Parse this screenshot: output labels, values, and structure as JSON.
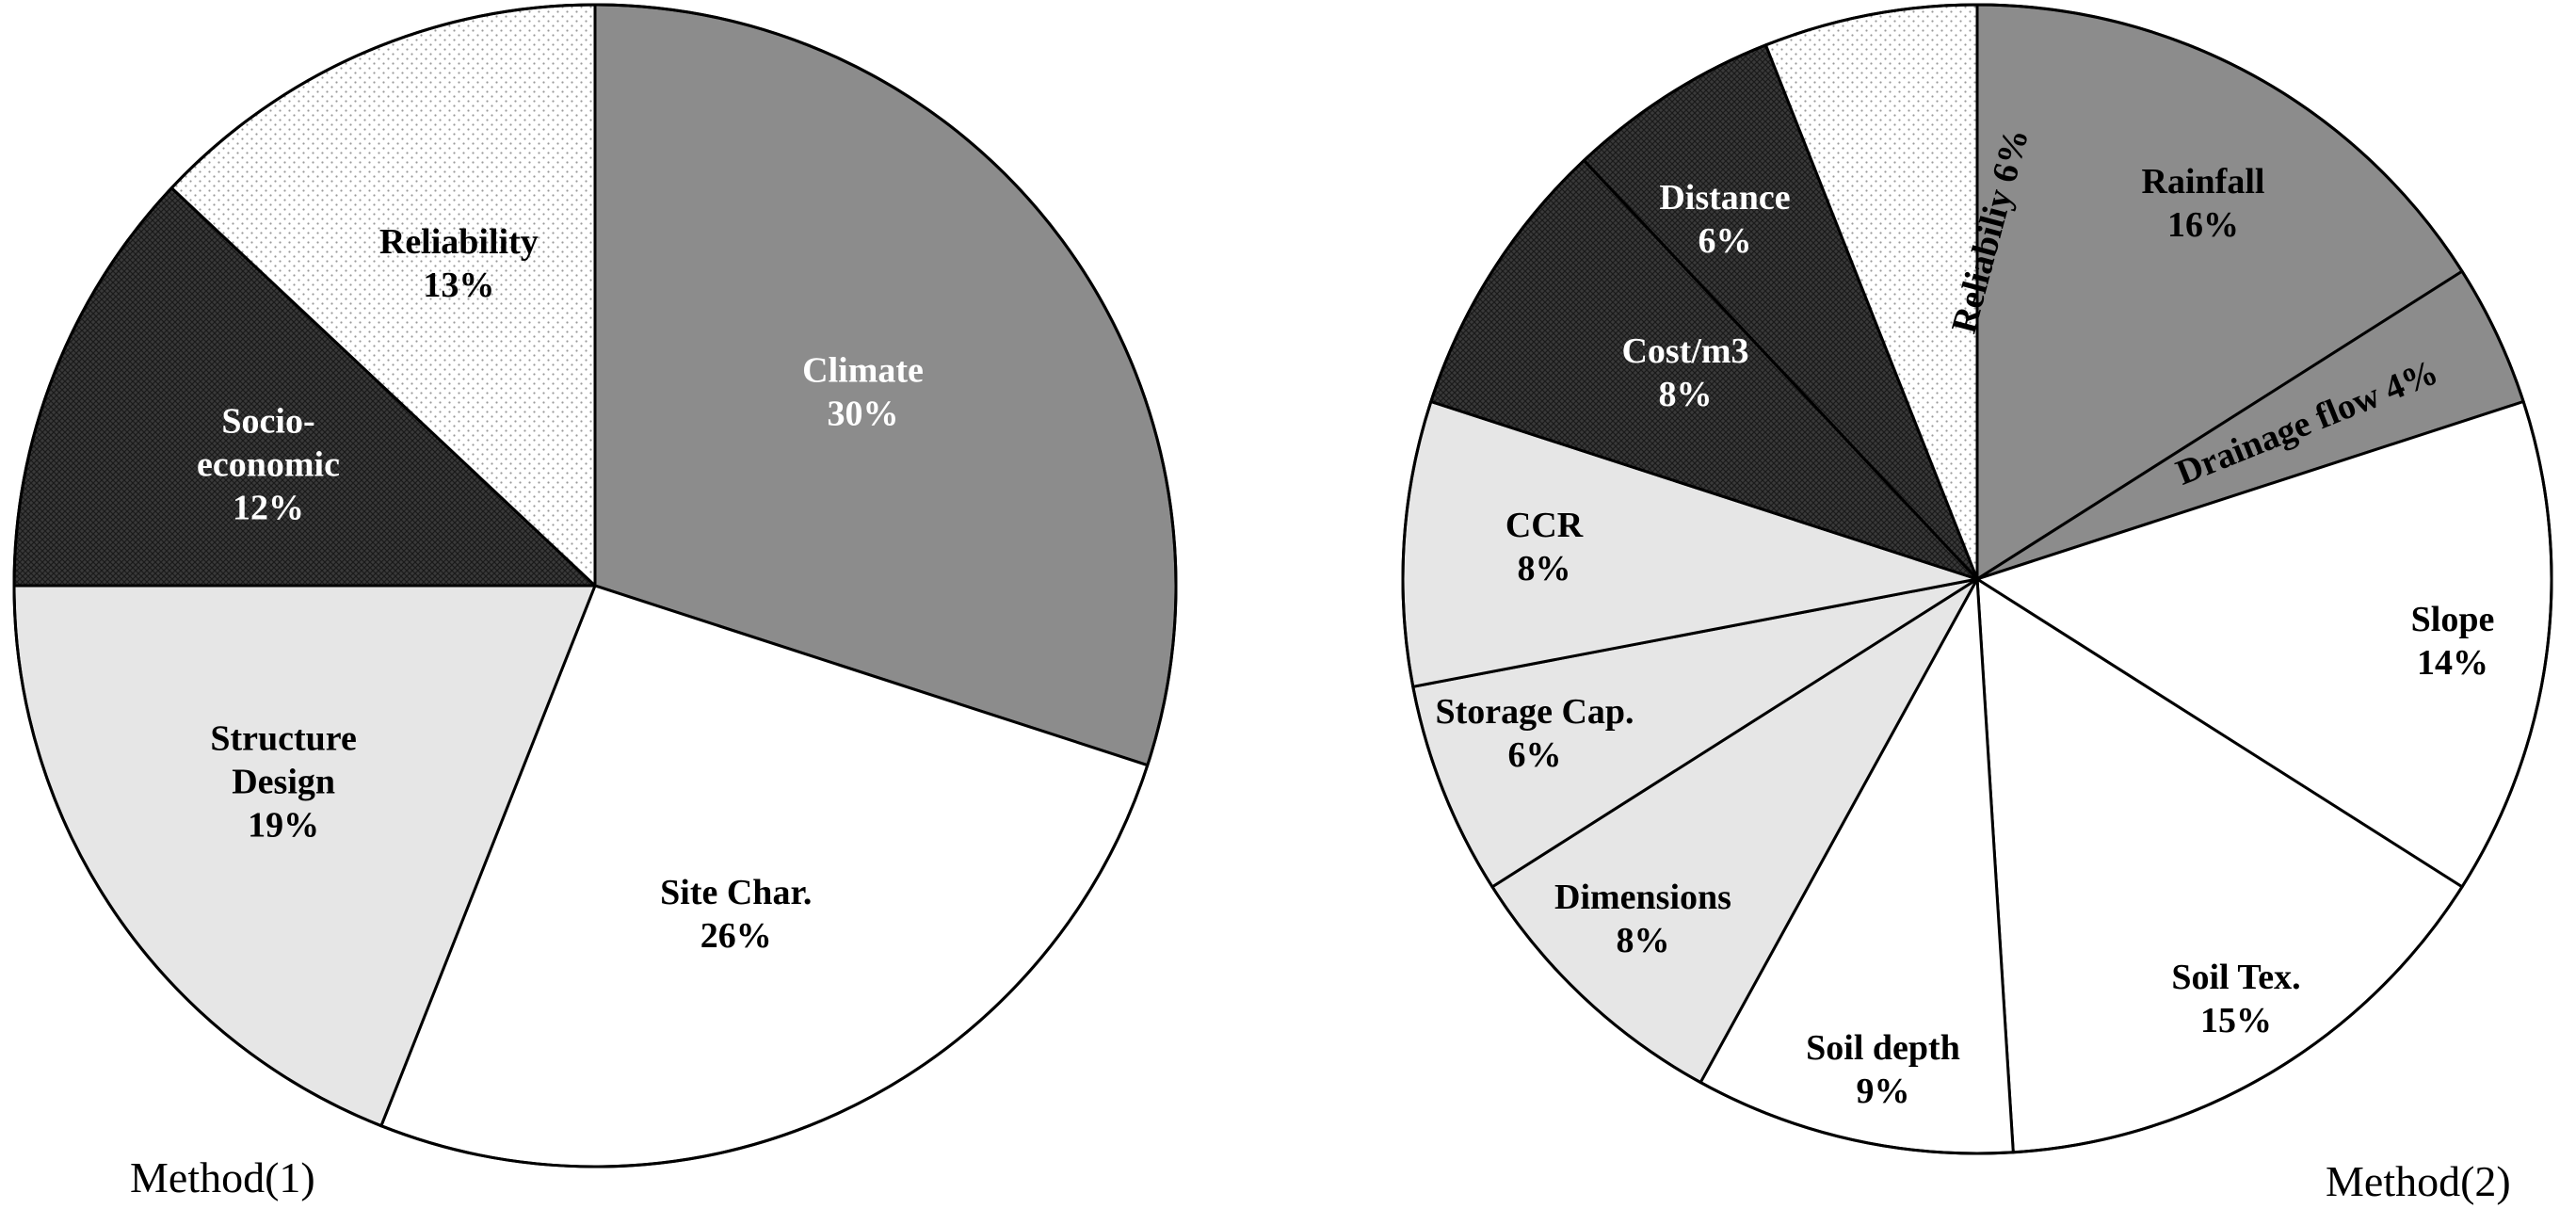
{
  "chart_data": [
    {
      "type": "pie",
      "caption": "Method(1)",
      "start_angle_deg": 0,
      "direction": "clockwise",
      "slices": [
        {
          "label_lines": [
            "Climate",
            "30%"
          ],
          "value": 30,
          "fill": "#8c8c8c",
          "pattern": "solid",
          "text_color": "#ffffff"
        },
        {
          "label_lines": [
            "Site Char.",
            "26%"
          ],
          "value": 26,
          "fill": "#ffffff",
          "pattern": "solid",
          "text_color": "#000000"
        },
        {
          "label_lines": [
            "Structure",
            "Design",
            "19%"
          ],
          "value": 19,
          "fill": "#e6e6e6",
          "pattern": "solid",
          "text_color": "#000000"
        },
        {
          "label_lines": [
            "Socio-",
            "economic",
            "12%"
          ],
          "value": 12,
          "fill": "#3a3a3a",
          "pattern": "crosshatch",
          "text_color": "#ffffff"
        },
        {
          "label_lines": [
            "Reliability",
            "13%"
          ],
          "value": 13,
          "fill": "#ffffff",
          "pattern": "dots",
          "text_color": "#000000"
        }
      ]
    },
    {
      "type": "pie",
      "caption": "Method(2)",
      "start_angle_deg": 0,
      "direction": "clockwise",
      "slices": [
        {
          "label_lines": [
            "Rainfall",
            "16%"
          ],
          "value": 16,
          "fill": "#8c8c8c",
          "pattern": "solid",
          "text_color": "#000000"
        },
        {
          "label_lines": [
            "Drainage  flow 4%"
          ],
          "value": 4,
          "fill": "#8c8c8c",
          "pattern": "solid",
          "text_color": "#000000",
          "rotate_text": true
        },
        {
          "label_lines": [
            "Slope",
            "14%"
          ],
          "value": 14,
          "fill": "#ffffff",
          "pattern": "solid",
          "text_color": "#000000"
        },
        {
          "label_lines": [
            "Soil Tex.",
            "15%"
          ],
          "value": 15,
          "fill": "#ffffff",
          "pattern": "solid",
          "text_color": "#000000"
        },
        {
          "label_lines": [
            "Soil depth",
            "9%"
          ],
          "value": 9,
          "fill": "#ffffff",
          "pattern": "solid",
          "text_color": "#000000"
        },
        {
          "label_lines": [
            "Dimensions",
            "8%"
          ],
          "value": 8,
          "fill": "#e6e6e6",
          "pattern": "solid",
          "text_color": "#000000"
        },
        {
          "label_lines": [
            "Storage Cap.",
            "6%"
          ],
          "value": 6,
          "fill": "#e6e6e6",
          "pattern": "solid",
          "text_color": "#000000"
        },
        {
          "label_lines": [
            "CCR",
            "8%"
          ],
          "value": 8,
          "fill": "#e6e6e6",
          "pattern": "solid",
          "text_color": "#000000"
        },
        {
          "label_lines": [
            "Cost/m3",
            "8%"
          ],
          "value": 8,
          "fill": "#3a3a3a",
          "pattern": "crosshatch",
          "text_color": "#ffffff"
        },
        {
          "label_lines": [
            "Distance",
            "6%"
          ],
          "value": 6,
          "fill": "#3a3a3a",
          "pattern": "crosshatch",
          "text_color": "#ffffff"
        },
        {
          "label_lines": [
            "Reliabiliy  6%"
          ],
          "value": 6,
          "fill": "#ffffff",
          "pattern": "dots",
          "text_color": "#000000",
          "rotate_text": true
        }
      ]
    }
  ]
}
